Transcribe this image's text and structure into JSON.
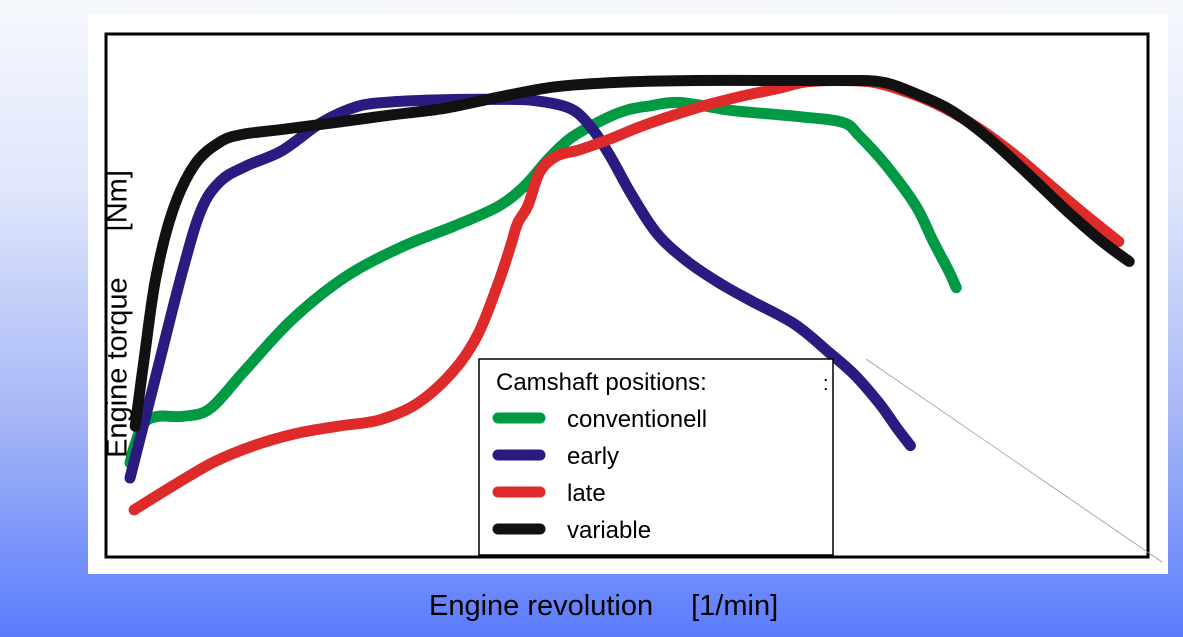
{
  "chart_data": {
    "type": "line",
    "title": "",
    "xlabel": "Engine revolution",
    "xunit": "[1/min]",
    "ylabel": "Engine torque",
    "yunit": "[Nm]",
    "xlim": [
      0,
      100
    ],
    "ylim": [
      0,
      100
    ],
    "grid": false,
    "ticks_shown": false,
    "legend": {
      "title": "Camshaft positions:",
      "placement": "bottom-center"
    },
    "series": [
      {
        "name": "conventionell",
        "color": "#009a44",
        "x": [
          2.3,
          2.7,
          3.6,
          5.0,
          7.4,
          10.0,
          13.3,
          17.8,
          23.0,
          28.4,
          33.3,
          37.6,
          40.2,
          42.4,
          44.6,
          47.6,
          49.9,
          52.0,
          55.1,
          60.0,
          66.5,
          70.7,
          72.3,
          74.9,
          77.7,
          79.4,
          80.8,
          81.6
        ],
        "y": [
          18.0,
          21.0,
          25.5,
          26.9,
          26.9,
          28.4,
          35.6,
          45.3,
          53.6,
          59.3,
          63.2,
          67.0,
          71.0,
          76.0,
          80.1,
          83.5,
          85.4,
          86.2,
          86.9,
          85.4,
          84.2,
          83.1,
          80.5,
          74.8,
          67.2,
          60.3,
          55.0,
          51.5
        ]
      },
      {
        "name": "early",
        "color": "#2b1b80",
        "x": [
          2.3,
          4.8,
          7.2,
          9.1,
          11.0,
          13.5,
          16.9,
          20.7,
          24.2,
          27.3,
          30.3,
          34.1,
          37.6,
          41.0,
          44.5,
          46.5,
          48.4,
          50.4,
          52.9,
          55.8,
          59.1,
          62.0,
          66.1,
          69.4,
          71.9,
          74.2,
          76.0,
          77.2
        ],
        "y": [
          15.1,
          34.7,
          53.6,
          66.2,
          71.9,
          74.8,
          77.7,
          83.1,
          86.2,
          87.0,
          87.3,
          87.5,
          87.5,
          87.3,
          85.8,
          82.3,
          76.6,
          69.4,
          61.8,
          56.5,
          52.1,
          48.9,
          44.5,
          39.1,
          34.7,
          29.4,
          24.4,
          21.3
        ]
      },
      {
        "name": "late",
        "color": "#df2a2a",
        "x": [
          2.7,
          6.5,
          10.3,
          14.2,
          18.2,
          22.2,
          26.2,
          29.9,
          33.4,
          35.7,
          37.6,
          38.8,
          39.5,
          40.5,
          41.6,
          43.2,
          45.5,
          48.6,
          51.3,
          54.5,
          57.8,
          61.0,
          64.3,
          67.1,
          70.3,
          73.5,
          76.3,
          79.6,
          83.5,
          87.2,
          90.5,
          94.0,
          97.2
        ],
        "y": [
          9.0,
          13.7,
          18.1,
          21.3,
          23.6,
          25.0,
          26.2,
          29.4,
          35.7,
          42.6,
          52.1,
          59.3,
          63.8,
          67.2,
          73.5,
          76.6,
          77.9,
          80.1,
          82.3,
          84.5,
          86.5,
          88.1,
          89.5,
          90.8,
          91.1,
          90.8,
          89.3,
          86.7,
          82.3,
          76.9,
          71.3,
          65.4,
          60.3
        ]
      },
      {
        "name": "variable",
        "color": "#111111",
        "x": [
          2.8,
          3.7,
          4.8,
          6.4,
          8.5,
          10.9,
          13.1,
          17.1,
          22.1,
          27.3,
          32.5,
          37.6,
          43.1,
          49.5,
          56.6,
          64.3,
          70.7,
          74.5,
          77.8,
          81.1,
          84.7,
          88.5,
          92.2,
          95.6,
          98.2
        ],
        "y": [
          25.0,
          38.5,
          53.6,
          66.2,
          75.0,
          79.3,
          80.8,
          81.8,
          83.1,
          84.5,
          85.8,
          87.9,
          89.9,
          90.8,
          91.1,
          91.1,
          91.1,
          90.8,
          88.5,
          85.4,
          80.1,
          73.2,
          66.2,
          60.3,
          56.5
        ]
      }
    ]
  }
}
